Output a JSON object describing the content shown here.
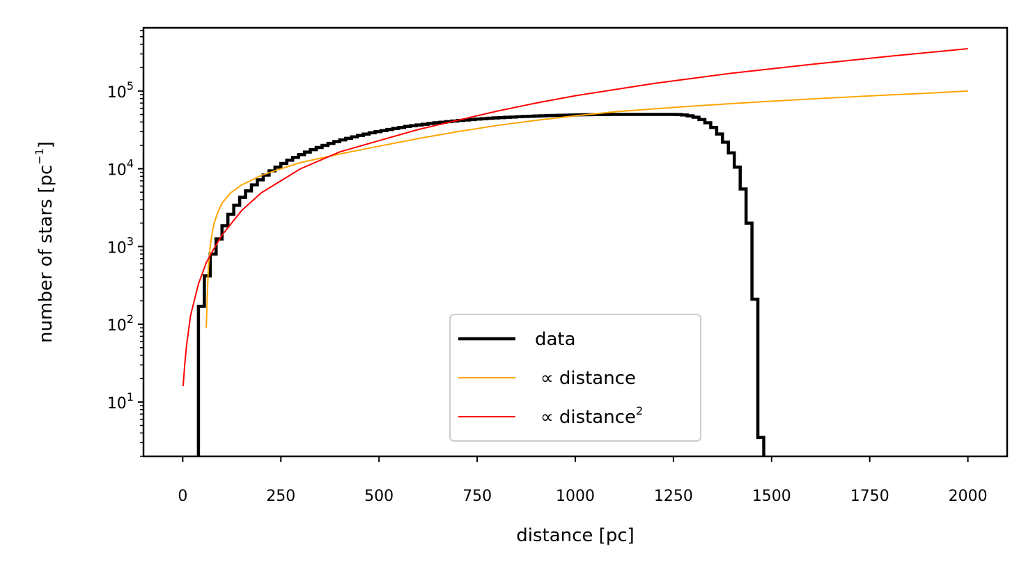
{
  "chart_data": {
    "type": "line",
    "xlabel": "distance [pc]",
    "ylabel": "number of stars [pc",
    "ylabel_exponent": "−1",
    "ylabel_suffix": "]",
    "xlim": [
      -100,
      2100
    ],
    "ylim": [
      2,
      650000
    ],
    "yscale": "log",
    "grid": false,
    "legend_position": "lower-center",
    "x_ticks": [
      0,
      250,
      500,
      750,
      1000,
      1250,
      1500,
      1750,
      2000
    ],
    "x_tick_labels": [
      "0",
      "250",
      "500",
      "750",
      "1000",
      "1250",
      "1500",
      "1750",
      "2000"
    ],
    "y_ticks": [
      10,
      100,
      1000,
      10000,
      100000
    ],
    "y_tick_labels": [
      {
        "base": "10",
        "exp": "1"
      },
      {
        "base": "10",
        "exp": "2"
      },
      {
        "base": "10",
        "exp": "3"
      },
      {
        "base": "10",
        "exp": "4"
      },
      {
        "base": "10",
        "exp": "5"
      }
    ],
    "series": [
      {
        "name": "data",
        "kind": "step",
        "color": "#000000",
        "bin_width": 15,
        "bin_edges_start": 40,
        "values": [
          170,
          420,
          800,
          1250,
          1850,
          2600,
          3400,
          4300,
          5200,
          6200,
          7200,
          8300,
          9400,
          10500,
          11700,
          12900,
          14000,
          15200,
          16400,
          17600,
          18800,
          20000,
          21200,
          22400,
          23500,
          24600,
          25700,
          26800,
          27900,
          29000,
          30000,
          31000,
          32000,
          33000,
          34000,
          35000,
          35800,
          36600,
          37400,
          38200,
          39000,
          39700,
          40400,
          41100,
          41800,
          42400,
          43000,
          43600,
          44100,
          44600,
          45100,
          45500,
          45900,
          46300,
          46700,
          47100,
          47400,
          47700,
          48000,
          48300,
          48500,
          48700,
          48900,
          49100,
          49300,
          49500,
          49600,
          49700,
          49800,
          49900,
          50000,
          50000,
          50000,
          50000,
          50000,
          50000,
          50000,
          50000,
          50000,
          50000,
          50000,
          49800,
          49200,
          48000,
          46000,
          43000,
          39000,
          34000,
          28000,
          22000,
          16000,
          10500,
          5500,
          2000,
          210,
          3.5
        ]
      },
      {
        "name": "∝ distance",
        "kind": "line",
        "color": "#ffa500",
        "x": [
          60,
          62,
          65,
          70,
          75,
          80,
          90,
          100,
          120,
          150,
          200,
          250,
          300,
          400,
          500,
          600,
          700,
          800,
          900,
          1000,
          1100,
          1200,
          1300,
          1400,
          1500,
          1600,
          1700,
          1800,
          1900,
          2000
        ],
        "y": [
          90,
          200,
          500,
          1000,
          1500,
          2000,
          2800,
          3600,
          4800,
          6200,
          8200,
          10000,
          12000,
          15500,
          19500,
          24500,
          30000,
          36000,
          42000,
          48000,
          54000,
          59000,
          64000,
          69000,
          74000,
          79000,
          84000,
          89000,
          94000,
          100000
        ]
      },
      {
        "name": "∝ distance",
        "name_exponent": "2",
        "kind": "line",
        "color": "#ff0000",
        "x": [
          1,
          5,
          10,
          20,
          40,
          60,
          80,
          100,
          150,
          200,
          300,
          400,
          500,
          600,
          700,
          800,
          900,
          1000,
          1200,
          1400,
          1600,
          1800,
          2000
        ],
        "y": [
          16,
          30,
          55,
          130,
          330,
          620,
          950,
          1400,
          2900,
          4900,
          10000,
          16500,
          23000,
          32000,
          42000,
          55000,
          70000,
          87000,
          125000,
          170000,
          220000,
          280000,
          350000
        ]
      }
    ]
  }
}
